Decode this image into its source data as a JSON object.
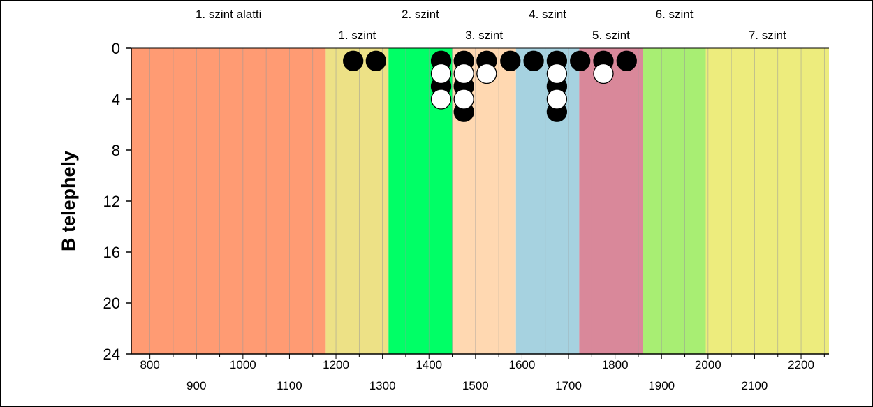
{
  "chart_data": {
    "type": "scatter",
    "title": "",
    "ylabel": "B telephely",
    "xlabel": "",
    "xlim": [
      760,
      2260
    ],
    "ylim": [
      0,
      24
    ],
    "y_inverted": true,
    "yticks": [
      0,
      4,
      8,
      12,
      16,
      20,
      24
    ],
    "xticks_top_row": [
      800,
      1000,
      1200,
      1400,
      1600,
      1800,
      2000,
      2200
    ],
    "xticks_bottom_row": [
      900,
      1100,
      1300,
      1500,
      1700,
      1900,
      2100
    ],
    "minor_grid_step": 50,
    "grid": true,
    "bands": [
      {
        "label": "1. szint alatti",
        "from": 760,
        "to": 1178,
        "color": "#FF9B73",
        "row": "top"
      },
      {
        "label": "1. szint",
        "from": 1178,
        "to": 1313,
        "color": "#EDE186",
        "row": "bottom"
      },
      {
        "label": "2. szint",
        "from": 1313,
        "to": 1450,
        "color": "#00FF66",
        "row": "top"
      },
      {
        "label": "3. szint",
        "from": 1450,
        "to": 1587,
        "color": "#FFD8B1",
        "row": "bottom"
      },
      {
        "label": "4. szint",
        "from": 1587,
        "to": 1723,
        "color": "#A6D2E0",
        "row": "top"
      },
      {
        "label": "5. szint",
        "from": 1723,
        "to": 1860,
        "color": "#D9889A",
        "row": "bottom"
      },
      {
        "label": "6. szint",
        "from": 1860,
        "to": 1995,
        "color": "#A8EE73",
        "row": "top"
      },
      {
        "label": "7. szint",
        "from": 1995,
        "to": 2260,
        "color": "#EDEC7D",
        "row": "bottom"
      }
    ],
    "series": [
      {
        "marker": "filled-black",
        "points": [
          {
            "x": 1237,
            "y": 1
          },
          {
            "x": 1286,
            "y": 1
          },
          {
            "x": 1426,
            "y": 1
          },
          {
            "x": 1426,
            "y": 3
          },
          {
            "x": 1475,
            "y": 1
          },
          {
            "x": 1475,
            "y": 3
          },
          {
            "x": 1475,
            "y": 5
          },
          {
            "x": 1524,
            "y": 1
          },
          {
            "x": 1575,
            "y": 1
          },
          {
            "x": 1625,
            "y": 1
          },
          {
            "x": 1675,
            "y": 1
          },
          {
            "x": 1675,
            "y": 3
          },
          {
            "x": 1675,
            "y": 5
          },
          {
            "x": 1725,
            "y": 1
          },
          {
            "x": 1775,
            "y": 1
          },
          {
            "x": 1825,
            "y": 1
          }
        ]
      },
      {
        "marker": "open-white",
        "points": [
          {
            "x": 1426,
            "y": 2
          },
          {
            "x": 1426,
            "y": 4
          },
          {
            "x": 1475,
            "y": 2
          },
          {
            "x": 1475,
            "y": 4
          },
          {
            "x": 1524,
            "y": 2
          },
          {
            "x": 1675,
            "y": 2
          },
          {
            "x": 1675,
            "y": 4
          },
          {
            "x": 1775,
            "y": 2
          }
        ]
      }
    ]
  }
}
